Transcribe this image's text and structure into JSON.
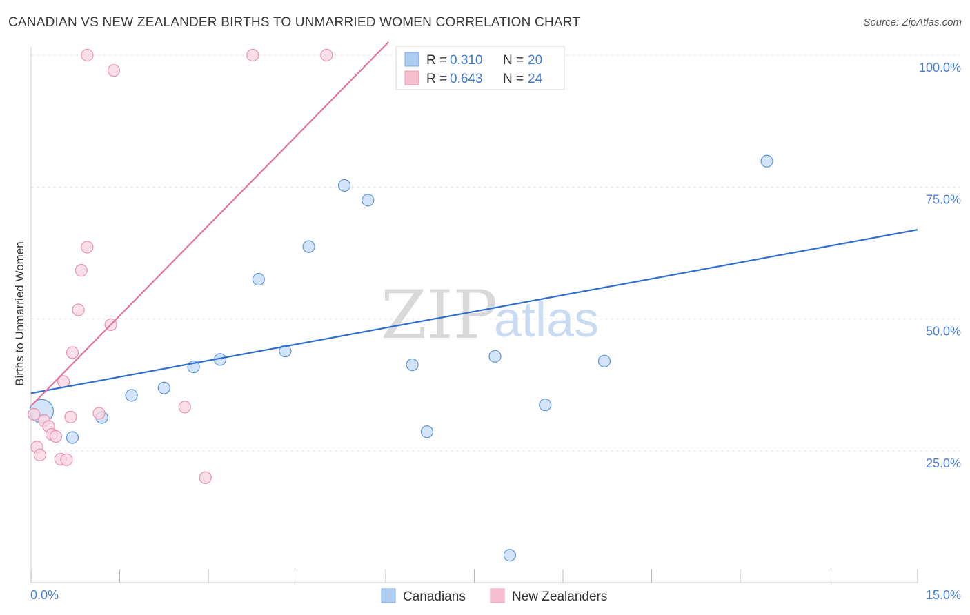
{
  "header": {
    "title": "CANADIAN VS NEW ZEALANDER BIRTHS TO UNMARRIED WOMEN CORRELATION CHART",
    "source": "Source: ZipAtlas.com"
  },
  "watermark": {
    "zip": "ZIP",
    "atlas": "atlas"
  },
  "legend_box": {
    "rows": [
      {
        "r_label": "R =",
        "r_value": "0.310",
        "n_label": "N =",
        "n_value": "20",
        "color": "#aecbf0"
      },
      {
        "r_label": "R =",
        "r_value": "0.643",
        "n_label": "N =",
        "n_value": "24",
        "color": "#f6bfd0"
      }
    ]
  },
  "chart_data": {
    "type": "scatter",
    "title": "CANADIAN VS NEW ZEALANDER BIRTHS TO UNMARRIED WOMEN CORRELATION CHART",
    "xlabel": "",
    "ylabel": "Births to Unmarried Women",
    "xlim": [
      0,
      15
    ],
    "ylim": [
      0,
      105
    ],
    "x_tick_labels": [
      {
        "value": 0,
        "label": "0.0%"
      },
      {
        "value": 15,
        "label": "15.0%"
      }
    ],
    "y_tick_labels": [
      {
        "value": 25,
        "label": "25.0%"
      },
      {
        "value": 50,
        "label": "50.0%"
      },
      {
        "value": 75,
        "label": "75.0%"
      },
      {
        "value": 100,
        "label": "100.0%"
      }
    ],
    "grid": true,
    "legend_position": "bottom-center",
    "series": [
      {
        "name": "Canadians",
        "color": "#5b93dc",
        "fill": "#c6dbf5",
        "trend_color": "#2e6fcf",
        "trend": {
          "x": [
            0,
            15
          ],
          "y": [
            35.9,
            66.9
          ]
        },
        "points": [
          {
            "x": 0.18,
            "y": 32.5,
            "big": true
          },
          {
            "x": 0.7,
            "y": 27.5
          },
          {
            "x": 1.2,
            "y": 31.3
          },
          {
            "x": 1.7,
            "y": 35.5
          },
          {
            "x": 2.25,
            "y": 36.9
          },
          {
            "x": 2.75,
            "y": 40.9
          },
          {
            "x": 3.2,
            "y": 42.3
          },
          {
            "x": 3.85,
            "y": 57.5
          },
          {
            "x": 4.3,
            "y": 43.9
          },
          {
            "x": 4.7,
            "y": 63.7
          },
          {
            "x": 5.3,
            "y": 75.3
          },
          {
            "x": 5.7,
            "y": 72.5
          },
          {
            "x": 6.45,
            "y": 41.3
          },
          {
            "x": 6.7,
            "y": 28.6
          },
          {
            "x": 7.45,
            "y": 99.9
          },
          {
            "x": 7.85,
            "y": 42.9
          },
          {
            "x": 8.1,
            "y": 5.2
          },
          {
            "x": 8.7,
            "y": 33.7
          },
          {
            "x": 9.7,
            "y": 42.0
          },
          {
            "x": 12.45,
            "y": 79.9
          }
        ]
      },
      {
        "name": "New Zealanders",
        "color": "#e892ad",
        "fill": "#fad4e0",
        "trend_color": "#e2739a",
        "trend": {
          "x": [
            0,
            6.05
          ],
          "y": [
            33.5,
            102.5
          ]
        },
        "points": [
          {
            "x": 0.05,
            "y": 31.9
          },
          {
            "x": 0.1,
            "y": 25.7
          },
          {
            "x": 0.15,
            "y": 24.2
          },
          {
            "x": 0.22,
            "y": 30.7
          },
          {
            "x": 0.3,
            "y": 29.6
          },
          {
            "x": 0.35,
            "y": 28.1
          },
          {
            "x": 0.42,
            "y": 27.7
          },
          {
            "x": 0.5,
            "y": 23.4
          },
          {
            "x": 0.55,
            "y": 38.1
          },
          {
            "x": 0.6,
            "y": 23.3
          },
          {
            "x": 0.67,
            "y": 31.4
          },
          {
            "x": 0.7,
            "y": 43.6
          },
          {
            "x": 0.8,
            "y": 51.7
          },
          {
            "x": 0.85,
            "y": 59.2
          },
          {
            "x": 0.95,
            "y": 63.6
          },
          {
            "x": 0.95,
            "y": 100.0
          },
          {
            "x": 1.15,
            "y": 32.1
          },
          {
            "x": 1.35,
            "y": 48.9
          },
          {
            "x": 1.4,
            "y": 97.1
          },
          {
            "x": 2.6,
            "y": 33.3
          },
          {
            "x": 2.95,
            "y": 19.9
          },
          {
            "x": 3.75,
            "y": 100.0
          },
          {
            "x": 5.0,
            "y": 100.0
          },
          {
            "x": 6.95,
            "y": 100.0
          }
        ]
      }
    ]
  }
}
